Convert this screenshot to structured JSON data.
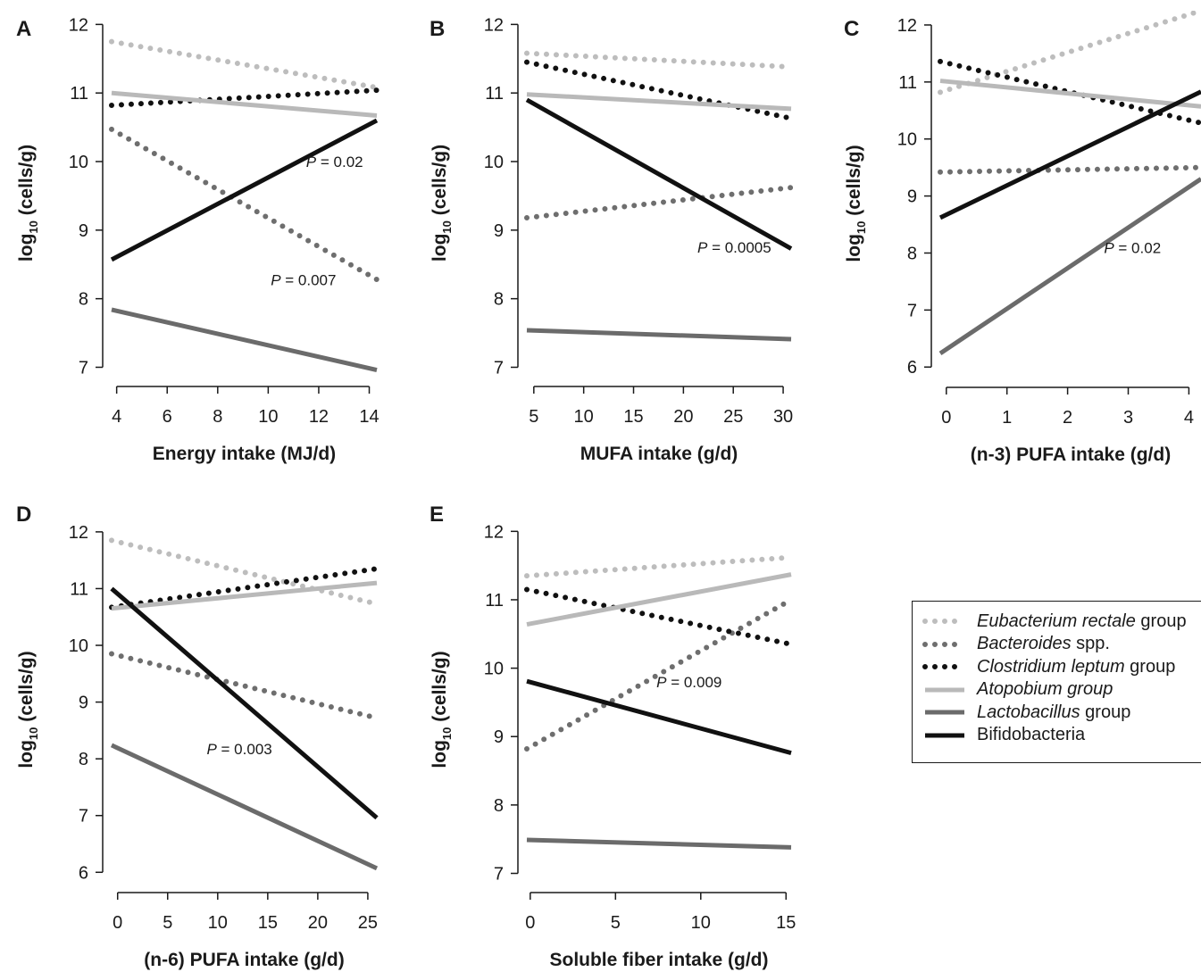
{
  "series_styles": {
    "Eubacterium rectale group": {
      "color": "#bdbdbd",
      "dash": "dotted"
    },
    "Bacteroides spp.": {
      "color": "#6e6e6e",
      "dash": "dotted"
    },
    "Clostridium leptum group": {
      "color": "#111111",
      "dash": "dotted"
    },
    "Atopobium group": {
      "color": "#b9b9b9",
      "dash": "solid"
    },
    "Lactobacillus group": {
      "color": "#6b6b6b",
      "dash": "solid"
    },
    "Bifidobacteria": {
      "color": "#111111",
      "dash": "solid"
    }
  },
  "legend": [
    {
      "key": "Eubacterium rectale group",
      "italic": "Eubacterium rectale",
      "plain": " group"
    },
    {
      "key": "Bacteroides spp.",
      "italic": "Bacteroides",
      "plain": " spp."
    },
    {
      "key": "Clostridium leptum group",
      "italic": "Clostridium leptum",
      "plain": " group"
    },
    {
      "key": "Atopobium group",
      "italic": "Atopobium group",
      "plain": ""
    },
    {
      "key": "Lactobacillus group",
      "italic": "Lactobacillus",
      "plain": " group"
    },
    {
      "key": "Bifidobacteria",
      "italic": "",
      "plain": "Bifidobacteria"
    }
  ],
  "chart_data": [
    {
      "panel": "A",
      "type": "line",
      "xlabel": "Energy intake (MJ/d)",
      "ylabel": "log10 (cells/g)",
      "xlim": [
        3.8,
        14.3
      ],
      "ylim": [
        6.85,
        12.2
      ],
      "xticks": [
        4,
        6,
        8,
        10,
        12,
        14
      ],
      "yticks": [
        7,
        8,
        9,
        10,
        11,
        12
      ],
      "series": [
        {
          "name": "Eubacterium rectale group",
          "x": [
            3.8,
            14.3
          ],
          "y": [
            11.75,
            11.08
          ]
        },
        {
          "name": "Bacteroides spp.",
          "x": [
            3.8,
            14.3
          ],
          "y": [
            10.47,
            8.28
          ]
        },
        {
          "name": "Clostridium leptum group",
          "x": [
            3.8,
            14.3
          ],
          "y": [
            10.82,
            11.04
          ]
        },
        {
          "name": "Atopobium group",
          "x": [
            3.8,
            14.3
          ],
          "y": [
            11.0,
            10.67
          ]
        },
        {
          "name": "Lactobacillus group",
          "x": [
            3.8,
            14.3
          ],
          "y": [
            7.84,
            6.96
          ]
        },
        {
          "name": "Bifidobacteria",
          "x": [
            3.8,
            14.3
          ],
          "y": [
            8.57,
            10.6
          ]
        }
      ],
      "annotations": [
        {
          "text": "= 0.02",
          "italic": "P",
          "x": 11.5,
          "y": 9.92
        },
        {
          "text": "= 0.007",
          "italic": "P",
          "x": 10.1,
          "y": 8.2
        }
      ]
    },
    {
      "panel": "B",
      "type": "line",
      "xlabel": "MUFA intake (g/d)",
      "ylabel": "log10 (cells/g)",
      "xlim": [
        4.3,
        30.8
      ],
      "ylim": [
        6.85,
        12.2
      ],
      "xticks": [
        5,
        10,
        15,
        20,
        25,
        30
      ],
      "yticks": [
        7,
        8,
        9,
        10,
        11,
        12
      ],
      "series": [
        {
          "name": "Eubacterium rectale group",
          "x": [
            4.3,
            30.8
          ],
          "y": [
            11.58,
            11.38
          ]
        },
        {
          "name": "Bacteroides spp.",
          "x": [
            4.3,
            30.8
          ],
          "y": [
            9.18,
            9.62
          ]
        },
        {
          "name": "Clostridium leptum group",
          "x": [
            4.3,
            30.8
          ],
          "y": [
            11.45,
            10.63
          ]
        },
        {
          "name": "Atopobium group",
          "x": [
            4.3,
            30.8
          ],
          "y": [
            10.98,
            10.77
          ]
        },
        {
          "name": "Lactobacillus group",
          "x": [
            4.3,
            30.8
          ],
          "y": [
            7.54,
            7.41
          ]
        },
        {
          "name": "Bifidobacteria",
          "x": [
            4.3,
            30.8
          ],
          "y": [
            10.9,
            8.73
          ]
        }
      ],
      "annotations": [
        {
          "text": "= 0.0005",
          "italic": "P",
          "x": 21.4,
          "y": 8.67
        }
      ]
    },
    {
      "panel": "C",
      "type": "line",
      "xlabel": "(n-3) PUFA intake (g/d)",
      "ylabel": "log10 (cells/g)",
      "xlim": [
        -0.1,
        4.2
      ],
      "ylim": [
        5.8,
        12.25
      ],
      "xticks": [
        0,
        1,
        2,
        3,
        4
      ],
      "yticks": [
        6,
        7,
        8,
        9,
        10,
        11,
        12
      ],
      "series": [
        {
          "name": "Eubacterium rectale group",
          "x": [
            -0.1,
            4.2
          ],
          "y": [
            10.82,
            12.25
          ]
        },
        {
          "name": "Bacteroides spp.",
          "x": [
            -0.1,
            4.2
          ],
          "y": [
            9.42,
            9.5
          ]
        },
        {
          "name": "Clostridium leptum group",
          "x": [
            -0.1,
            4.2
          ],
          "y": [
            11.36,
            10.28
          ]
        },
        {
          "name": "Atopobium group",
          "x": [
            -0.1,
            4.2
          ],
          "y": [
            11.02,
            10.57
          ]
        },
        {
          "name": "Lactobacillus group",
          "x": [
            -0.1,
            4.2
          ],
          "y": [
            6.24,
            9.3
          ]
        },
        {
          "name": "Bifidobacteria",
          "x": [
            -0.1,
            4.2
          ],
          "y": [
            8.62,
            10.83
          ]
        }
      ],
      "annotations": [
        {
          "text": "= 0.02",
          "italic": "P",
          "x": 2.6,
          "y": 8.0
        }
      ]
    },
    {
      "panel": "D",
      "type": "line",
      "xlabel": "(n-6) PUFA intake (g/d)",
      "ylabel": "log10 (cells/g)",
      "xlim": [
        -0.6,
        25.9
      ],
      "ylim": [
        5.8,
        12.25
      ],
      "xticks": [
        0,
        5,
        10,
        15,
        20,
        25
      ],
      "yticks": [
        6,
        7,
        8,
        9,
        10,
        11,
        12
      ],
      "series": [
        {
          "name": "Eubacterium rectale group",
          "x": [
            -0.6,
            25.9
          ],
          "y": [
            11.85,
            10.73
          ]
        },
        {
          "name": "Bacteroides spp.",
          "x": [
            -0.6,
            25.9
          ],
          "y": [
            9.85,
            8.72
          ]
        },
        {
          "name": "Clostridium leptum group",
          "x": [
            -0.6,
            25.9
          ],
          "y": [
            10.67,
            11.35
          ]
        },
        {
          "name": "Atopobium group",
          "x": [
            -0.6,
            25.9
          ],
          "y": [
            10.65,
            11.1
          ]
        },
        {
          "name": "Lactobacillus group",
          "x": [
            -0.6,
            25.9
          ],
          "y": [
            8.24,
            6.07
          ]
        },
        {
          "name": "Bifidobacteria",
          "x": [
            -0.6,
            25.9
          ],
          "y": [
            11.0,
            6.96
          ]
        }
      ],
      "annotations": [
        {
          "text": "= 0.003",
          "italic": "P",
          "x": 8.9,
          "y": 8.08
        }
      ]
    },
    {
      "panel": "E",
      "type": "line",
      "xlabel": "Soluble fiber intake (g/d)",
      "ylabel": "log10 (cells/g)",
      "xlim": [
        -0.2,
        15.3
      ],
      "ylim": [
        6.85,
        12.2
      ],
      "xticks": [
        0,
        5,
        10,
        15
      ],
      "yticks": [
        7,
        8,
        9,
        10,
        11,
        12
      ],
      "series": [
        {
          "name": "Eubacterium rectale group",
          "x": [
            -0.2,
            15.3
          ],
          "y": [
            11.35,
            11.62
          ]
        },
        {
          "name": "Bacteroides spp.",
          "x": [
            -0.2,
            15.3
          ],
          "y": [
            8.82,
            11.0
          ]
        },
        {
          "name": "Clostridium leptum group",
          "x": [
            -0.2,
            15.3
          ],
          "y": [
            11.15,
            10.35
          ]
        },
        {
          "name": "Atopobium group",
          "x": [
            -0.2,
            15.3
          ],
          "y": [
            10.64,
            11.37
          ]
        },
        {
          "name": "Lactobacillus group",
          "x": [
            -0.2,
            15.3
          ],
          "y": [
            7.49,
            7.38
          ]
        },
        {
          "name": "Bifidobacteria",
          "x": [
            -0.2,
            15.3
          ],
          "y": [
            9.81,
            8.76
          ]
        }
      ],
      "annotations": [
        {
          "text": "= 0.009",
          "italic": "P",
          "x": 7.4,
          "y": 9.72
        }
      ]
    }
  ]
}
